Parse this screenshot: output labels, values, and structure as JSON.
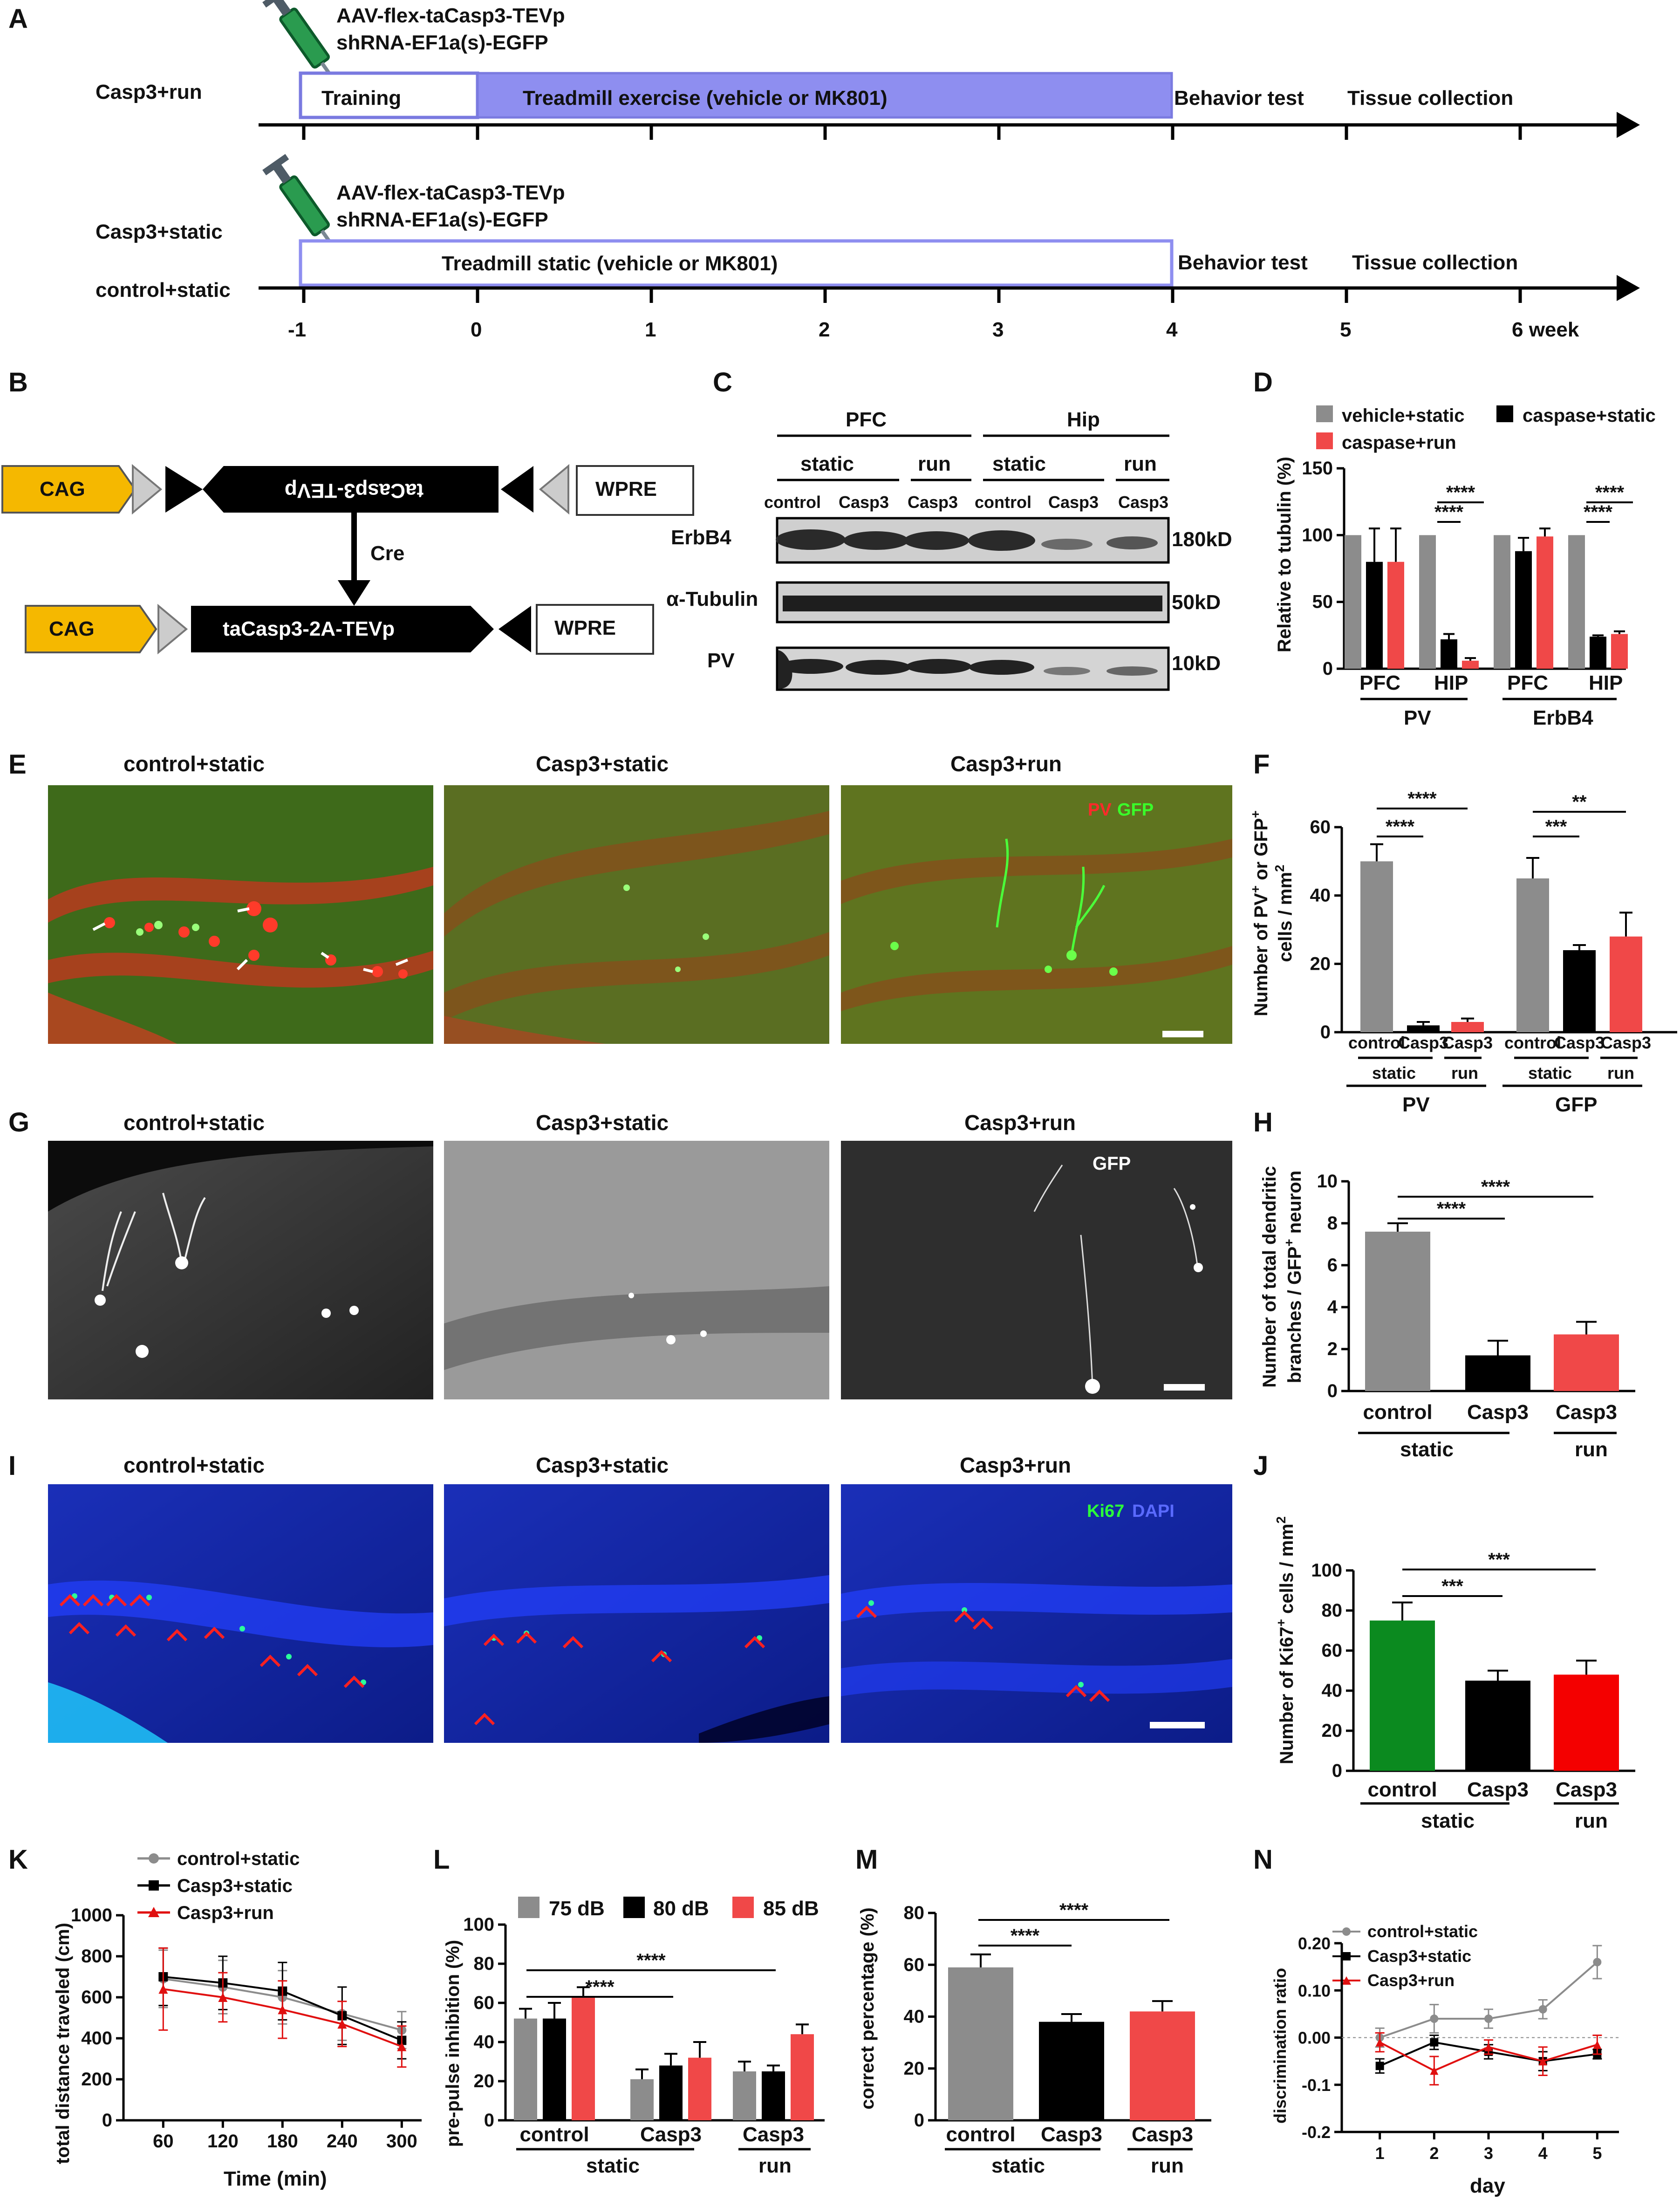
{
  "panel_labels": [
    "A",
    "B",
    "C",
    "D",
    "E",
    "F",
    "G",
    "H",
    "I",
    "J",
    "K",
    "L",
    "M",
    "N"
  ],
  "colors": {
    "gray": "#8c8c8c",
    "black": "#000000",
    "red": "#f04848",
    "green": "#0b8a1f",
    "timeline": "#8e8ef0",
    "timeline_border": "#7a7ae0",
    "cag": "#f5b800"
  },
  "panelA": {
    "row1_label": "Casp3+run",
    "row2_label_a": "Casp3+static",
    "row2_label_b": "control+static",
    "virus_line1": "AAV-flex-taCasp3-TEVp",
    "virus_line2": "shRNA-EF1a(s)-EGFP",
    "training": "Training",
    "run_bar": "Treadmill exercise  (vehicle or MK801)",
    "static_bar": "Treadmill static  (vehicle or MK801)",
    "behavior": "Behavior test",
    "tissue": "Tissue collection",
    "ticks": [
      "-1",
      "0",
      "1",
      "2",
      "3",
      "4",
      "5",
      "6 week"
    ]
  },
  "panelB": {
    "cag": "CAG",
    "insert_flipped": "taCasp3-TEVp",
    "wpre": "WPRE",
    "cre": "Cre",
    "insert": "taCasp3-2A-TEVp"
  },
  "panelC": {
    "region_pfc": "PFC",
    "region_hip": "Hip",
    "cond_static": "static",
    "cond_run": "run",
    "lanes": [
      "control",
      "Casp3",
      "Casp3",
      "control",
      "Casp3",
      "Casp3"
    ],
    "bands": [
      {
        "name": "ErbB4",
        "size": "180kD"
      },
      {
        "name": "α-Tubulin",
        "size": "50kD"
      },
      {
        "name": "PV",
        "size": "10kD"
      }
    ]
  },
  "panelD": {
    "chart_data": {
      "type": "bar",
      "ylabel": "Relative to tubulin (%)",
      "ylim": [
        0,
        150
      ],
      "yticks": [
        0,
        50,
        100,
        150
      ],
      "categories": [
        "PFC",
        "HIP",
        "PFC",
        "HIP"
      ],
      "groups": [
        "PV",
        "ErbB4"
      ],
      "series": [
        {
          "name": "vehicle+static",
          "color": "#8c8c8c",
          "values": [
            100,
            100,
            100,
            100
          ],
          "err": [
            0,
            0,
            0,
            0
          ]
        },
        {
          "name": "caspase+static",
          "color": "#000000",
          "values": [
            80,
            22,
            88,
            24
          ],
          "err": [
            25,
            4,
            10,
            1
          ]
        },
        {
          "name": "caspase+run",
          "color": "#f04848",
          "values": [
            80,
            6,
            99,
            26
          ],
          "err": [
            25,
            2,
            6,
            2
          ]
        }
      ],
      "significance": [
        "****",
        "****",
        "****",
        "****"
      ]
    }
  },
  "panelE": {
    "titles": [
      "control+static",
      "Casp3+static",
      "Casp3+run"
    ],
    "stain_pv": "PV",
    "stain_gfp": "GFP"
  },
  "panelF": {
    "chart_data": {
      "type": "bar",
      "ylabel_line1": "Number of PV",
      "ylabel_sup1": "+",
      "ylabel_mid": "  or GFP",
      "ylabel_sup2": "+",
      "ylabel_line2": "cells / mm",
      "ylabel_sup3": "2",
      "ylim": [
        0,
        60
      ],
      "yticks": [
        0,
        20,
        40,
        60
      ],
      "categories": [
        "control",
        "Casp3",
        "Casp3",
        "control",
        "Casp3",
        "Casp3"
      ],
      "conditions": [
        "static",
        "run",
        "static",
        "run"
      ],
      "groups": [
        "PV",
        "GFP"
      ],
      "values": [
        50,
        2,
        3,
        45,
        24,
        28
      ],
      "err": [
        5,
        1,
        1,
        6,
        1.5,
        7
      ],
      "colors": [
        "#8c8c8c",
        "#000000",
        "#f04848",
        "#8c8c8c",
        "#000000",
        "#f04848"
      ],
      "significance": [
        "****",
        "****",
        "***",
        "**"
      ]
    }
  },
  "panelG": {
    "titles": [
      "control+static",
      "Casp3+static",
      "Casp3+run"
    ],
    "stain": "GFP"
  },
  "panelH": {
    "chart_data": {
      "type": "bar",
      "ylabel_line1": "Number of total dendritic",
      "ylabel_line2": "branches  / GFP",
      "ylabel_sup": "+",
      "ylabel_end": " neuron",
      "ylim": [
        0,
        10
      ],
      "yticks": [
        0,
        2,
        4,
        6,
        8,
        10
      ],
      "categories": [
        "control",
        "Casp3",
        "Casp3"
      ],
      "conditions": [
        "static",
        "run"
      ],
      "values": [
        7.6,
        1.7,
        2.7
      ],
      "err": [
        0.4,
        0.7,
        0.6
      ],
      "colors": [
        "#8c8c8c",
        "#000000",
        "#f04848"
      ],
      "significance": [
        "****",
        "****"
      ]
    }
  },
  "panelI": {
    "titles": [
      "control+static",
      "Casp3+static",
      "Casp3+run"
    ],
    "stain_ki67": "Ki67",
    "stain_dapi": "DAPI"
  },
  "panelJ": {
    "chart_data": {
      "type": "bar",
      "ylabel_pre": "Number of Ki67",
      "ylabel_sup": "+",
      "ylabel_post": " cells / mm",
      "ylabel_sup2": "2",
      "ylim": [
        0,
        100
      ],
      "yticks": [
        0,
        20,
        40,
        60,
        80,
        100
      ],
      "categories": [
        "control",
        "Casp3",
        "Casp3"
      ],
      "conditions": [
        "static",
        "run"
      ],
      "values": [
        75,
        45,
        48
      ],
      "err": [
        9,
        5,
        7
      ],
      "colors": [
        "#0b8a1f",
        "#000000",
        "#f40000"
      ],
      "significance": [
        "***",
        "***"
      ]
    }
  },
  "panelK": {
    "chart_data": {
      "type": "line",
      "xlabel": "Time (min)",
      "ylabel": "total distance traveled (cm)",
      "x": [
        60,
        120,
        180,
        240,
        300
      ],
      "xlim": [
        20,
        320
      ],
      "ylim": [
        0,
        1000
      ],
      "yticks": [
        0,
        200,
        400,
        600,
        800,
        1000
      ],
      "series": [
        {
          "name": "control+static",
          "color": "#8c8c8c",
          "marker": "circle",
          "values": [
            690,
            650,
            600,
            520,
            440
          ],
          "err": [
            140,
            130,
            130,
            130,
            90
          ]
        },
        {
          "name": "Casp3+static",
          "color": "#000000",
          "marker": "square",
          "values": [
            700,
            670,
            630,
            510,
            390
          ],
          "err": [
            140,
            130,
            140,
            140,
            90
          ]
        },
        {
          "name": "Casp3+run",
          "color": "#e01010",
          "marker": "triangle",
          "values": [
            640,
            600,
            540,
            470,
            360
          ],
          "err": [
            200,
            120,
            140,
            110,
            100
          ]
        }
      ]
    }
  },
  "panelL": {
    "chart_data": {
      "type": "bar",
      "ylabel": "pre-pulse inhibition (%)",
      "ylim": [
        0,
        100
      ],
      "yticks": [
        0,
        20,
        40,
        60,
        80,
        100
      ],
      "categories": [
        "control",
        "Casp3",
        "Casp3"
      ],
      "conditions": [
        "static",
        "run"
      ],
      "series": [
        {
          "name": "75 dB",
          "color": "#8c8c8c",
          "values": [
            52,
            21,
            25
          ],
          "err": [
            5,
            5,
            5
          ]
        },
        {
          "name": "80 dB",
          "color": "#000000",
          "values": [
            52,
            28,
            25
          ],
          "err": [
            8,
            6,
            3
          ]
        },
        {
          "name": "85 dB",
          "color": "#f04848",
          "values": [
            63,
            32,
            44
          ],
          "err": [
            5,
            8,
            5
          ]
        }
      ],
      "significance": [
        "****",
        "****"
      ]
    }
  },
  "panelM": {
    "chart_data": {
      "type": "bar",
      "ylabel": "correct percentage (%)",
      "ylim": [
        0,
        80
      ],
      "yticks": [
        0,
        20,
        40,
        60,
        80
      ],
      "categories": [
        "control",
        "Casp3",
        "Casp3"
      ],
      "conditions": [
        "static",
        "run"
      ],
      "values": [
        59,
        38,
        42
      ],
      "err": [
        5,
        3,
        4
      ],
      "colors": [
        "#8c8c8c",
        "#000000",
        "#f04848"
      ],
      "significance": [
        "****",
        "****"
      ]
    }
  },
  "panelN": {
    "chart_data": {
      "type": "line",
      "xlabel": "day",
      "ylabel": "discrimination ratio",
      "x": [
        1,
        2,
        3,
        4,
        5
      ],
      "xlim": [
        0.3,
        5.4
      ],
      "ylim": [
        -0.2,
        0.2
      ],
      "yticks": [
        -0.2,
        -0.1,
        0.0,
        0.1,
        0.2
      ],
      "ytick_labels": [
        "-0.2",
        "-0.1",
        "0.00",
        "0.10",
        "0.20"
      ],
      "series": [
        {
          "name": "control+static",
          "color": "#8c8c8c",
          "marker": "circle",
          "values": [
            0.0,
            0.04,
            0.04,
            0.06,
            0.16
          ],
          "err": [
            0.02,
            0.03,
            0.02,
            0.02,
            0.035
          ]
        },
        {
          "name": "Casp3+static",
          "color": "#000000",
          "marker": "square",
          "values": [
            -0.06,
            -0.01,
            -0.03,
            -0.05,
            -0.035
          ],
          "err": [
            0.015,
            0.015,
            0.015,
            0.02,
            0.01
          ]
        },
        {
          "name": "Casp3+run",
          "color": "#e01010",
          "marker": "triangle",
          "values": [
            -0.01,
            -0.07,
            -0.02,
            -0.05,
            -0.015
          ],
          "err": [
            0.02,
            0.03,
            0.015,
            0.03,
            0.02
          ]
        }
      ]
    }
  }
}
